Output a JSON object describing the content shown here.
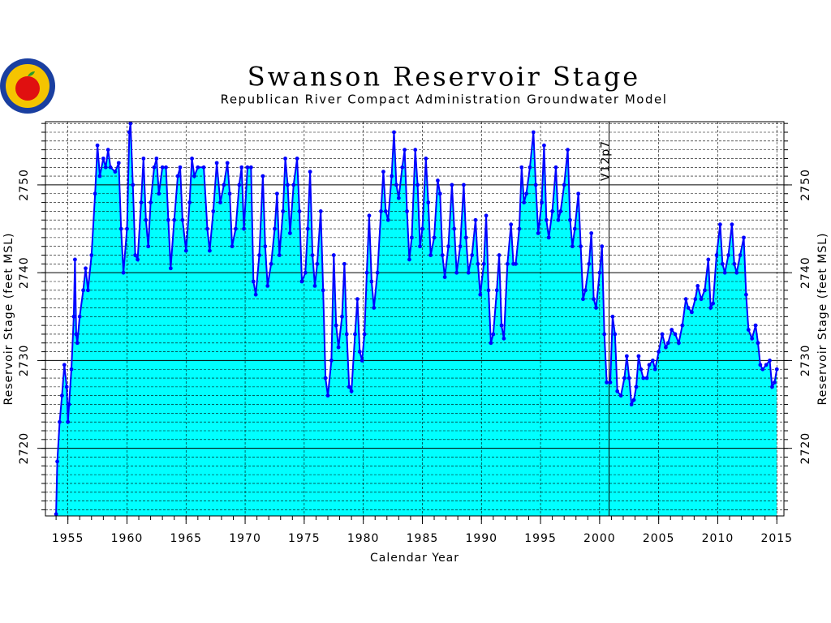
{
  "chart_data": {
    "type": "area",
    "title": "Swanson Reservoir Stage",
    "subtitle": "Republican River Compact Administration Groundwater Model",
    "xlabel": "Calendar Year",
    "ylabel": "Reservoir Stage (feet MSL)",
    "color": "#0000ff",
    "fill": "#00ffff",
    "xlim": [
      1953.1,
      2015.6
    ],
    "ylim": [
      2712.3,
      2757.2
    ],
    "xticks": [
      1955,
      1960,
      1965,
      1970,
      1975,
      1980,
      1985,
      1990,
      1995,
      2000,
      2005,
      2010,
      2015
    ],
    "yticks": [
      2720,
      2730,
      2740,
      2750
    ],
    "x_minor_step": 1,
    "y_minor_step": 1,
    "grid": true,
    "right_axis": true,
    "annotation": {
      "text": "V12p7",
      "x": 2000.8
    },
    "x": [
      1954.0,
      1954.1,
      1954.3,
      1954.5,
      1954.7,
      1954.9,
      1955.0,
      1955.1,
      1955.3,
      1955.5,
      1955.6,
      1955.7,
      1955.8,
      1956.0,
      1956.3,
      1956.5,
      1956.7,
      1957.0,
      1957.3,
      1957.5,
      1957.7,
      1958.0,
      1958.2,
      1958.4,
      1958.6,
      1959.0,
      1959.3,
      1959.5,
      1959.7,
      1960.0,
      1960.2,
      1960.3,
      1960.5,
      1960.7,
      1960.9,
      1961.2,
      1961.4,
      1961.6,
      1961.8,
      1962.0,
      1962.3,
      1962.5,
      1962.7,
      1963.0,
      1963.3,
      1963.5,
      1963.7,
      1964.0,
      1964.3,
      1964.5,
      1964.7,
      1965.0,
      1965.3,
      1965.5,
      1965.7,
      1966.0,
      1966.5,
      1966.8,
      1967.0,
      1967.3,
      1967.6,
      1967.9,
      1968.2,
      1968.5,
      1968.7,
      1968.9,
      1969.2,
      1969.5,
      1969.7,
      1969.9,
      1970.2,
      1970.5,
      1970.7,
      1970.9,
      1971.2,
      1971.5,
      1971.7,
      1971.9,
      1972.2,
      1972.5,
      1972.7,
      1972.9,
      1973.2,
      1973.4,
      1973.6,
      1973.8,
      1974.1,
      1974.4,
      1974.6,
      1974.8,
      1975.1,
      1975.3,
      1975.5,
      1975.7,
      1975.9,
      1976.1,
      1976.4,
      1976.6,
      1976.8,
      1977.0,
      1977.3,
      1977.5,
      1977.7,
      1977.9,
      1978.2,
      1978.4,
      1978.6,
      1978.8,
      1979.0,
      1979.3,
      1979.5,
      1979.7,
      1979.9,
      1980.1,
      1980.3,
      1980.5,
      1980.7,
      1980.9,
      1981.2,
      1981.5,
      1981.7,
      1981.9,
      1982.1,
      1982.4,
      1982.6,
      1982.8,
      1983.0,
      1983.3,
      1983.5,
      1983.7,
      1983.9,
      1984.1,
      1984.4,
      1984.6,
      1984.8,
      1985.0,
      1985.3,
      1985.5,
      1985.7,
      1986.0,
      1986.3,
      1986.5,
      1986.7,
      1986.9,
      1987.2,
      1987.5,
      1987.7,
      1987.9,
      1988.2,
      1988.5,
      1988.7,
      1988.9,
      1989.2,
      1989.5,
      1989.7,
      1989.9,
      1990.2,
      1990.4,
      1990.6,
      1990.8,
      1991.0,
      1991.3,
      1991.5,
      1991.7,
      1991.9,
      1992.2,
      1992.5,
      1992.7,
      1992.9,
      1993.2,
      1993.4,
      1993.6,
      1993.8,
      1994.1,
      1994.4,
      1994.6,
      1994.8,
      1995.1,
      1995.3,
      1995.5,
      1995.7,
      1996.0,
      1996.3,
      1996.5,
      1996.7,
      1997.0,
      1997.3,
      1997.5,
      1997.7,
      1997.9,
      1998.2,
      1998.4,
      1998.6,
      1998.8,
      1999.1,
      1999.3,
      1999.5,
      1999.7,
      2000.0,
      2000.2,
      2000.4,
      2000.6,
      2000.9,
      2001.1,
      2001.3,
      2001.5,
      2001.8,
      2002.1,
      2002.3,
      2002.5,
      2002.7,
      2002.9,
      2003.1,
      2003.3,
      2003.5,
      2003.7,
      2004.0,
      2004.2,
      2004.5,
      2004.7,
      2005.0,
      2005.3,
      2005.6,
      2005.8,
      2006.1,
      2006.4,
      2006.7,
      2007.0,
      2007.3,
      2007.5,
      2007.8,
      2008.1,
      2008.3,
      2008.6,
      2008.9,
      2009.2,
      2009.4,
      2009.6,
      2009.9,
      2010.2,
      2010.4,
      2010.6,
      2010.9,
      2011.2,
      2011.4,
      2011.6,
      2011.9,
      2012.2,
      2012.4,
      2012.6,
      2012.9,
      2013.2,
      2013.4,
      2013.6,
      2013.8,
      2014.1,
      2014.4,
      2014.6,
      2014.8,
      2015.0
    ],
    "values": [
      2712.5,
      2718.5,
      2723,
      2726,
      2729.5,
      2727,
      2723,
      2725,
      2729,
      2735,
      2741.5,
      2733,
      2732,
      2735,
      2738,
      2740.5,
      2738,
      2742,
      2749,
      2754.5,
      2751,
      2753,
      2752,
      2754,
      2752,
      2751.5,
      2752.5,
      2745,
      2740,
      2745,
      2756,
      2757,
      2750,
      2742,
      2741.5,
      2748,
      2753,
      2746,
      2743,
      2748,
      2752,
      2753,
      2749,
      2752,
      2752,
      2746,
      2740.5,
      2746,
      2751,
      2752,
      2746,
      2742.5,
      2748,
      2753,
      2751,
      2752,
      2752,
      2745,
      2742.5,
      2747,
      2752.5,
      2748,
      2750,
      2752.5,
      2749,
      2743,
      2745,
      2750,
      2752,
      2745,
      2752,
      2752,
      2739,
      2737.5,
      2742,
      2751,
      2743,
      2738.5,
      2741,
      2745,
      2749,
      2742,
      2747,
      2753,
      2750,
      2744.5,
      2750,
      2753,
      2747,
      2739,
      2740,
      2745,
      2751.5,
      2742,
      2738.5,
      2741,
      2747,
      2738,
      2728,
      2726,
      2730,
      2742,
      2734,
      2731.5,
      2735,
      2741,
      2733,
      2727,
      2726.5,
      2733,
      2737,
      2731,
      2730,
      2733,
      2740,
      2746.5,
      2739,
      2736,
      2740,
      2747,
      2751.5,
      2747,
      2746,
      2751,
      2756,
      2750,
      2748.5,
      2752,
      2754,
      2747,
      2741.5,
      2744,
      2754,
      2750,
      2743,
      2745,
      2753,
      2748,
      2742,
      2744,
      2750.5,
      2749,
      2742,
      2739.5,
      2743,
      2750,
      2745,
      2740,
      2743,
      2750,
      2744,
      2740,
      2742,
      2746,
      2741,
      2737.5,
      2741,
      2746.5,
      2738,
      2732,
      2733,
      2738,
      2742,
      2734,
      2732.5,
      2741,
      2745.5,
      2741,
      2741,
      2745,
      2752,
      2748,
      2749,
      2752,
      2756,
      2750,
      2744.5,
      2748,
      2754.5,
      2746,
      2744,
      2747,
      2752,
      2746,
      2747,
      2750,
      2754,
      2746,
      2743,
      2745,
      2749,
      2743,
      2737,
      2738,
      2741,
      2744.5,
      2737,
      2736,
      2740,
      2743,
      2733,
      2727.5,
      2727.5,
      2735,
      2733,
      2726.5,
      2726,
      2728,
      2730.5,
      2728,
      2725,
      2725.5,
      2727,
      2730.5,
      2729,
      2728,
      2728,
      2729.5,
      2730,
      2729,
      2731,
      2733,
      2731.5,
      2732,
      2733.5,
      2733,
      2732,
      2734,
      2737,
      2736,
      2735.5,
      2737,
      2738.5,
      2737,
      2738,
      2741.5,
      2736,
      2736.5,
      2742,
      2745.5,
      2741,
      2740,
      2742,
      2745.5,
      2741,
      2740,
      2742,
      2744,
      2737.5,
      2733.5,
      2732.5,
      2734,
      2732,
      2729.5,
      2729,
      2729.5,
      2730,
      2727,
      2727.5,
      2729
    ]
  }
}
